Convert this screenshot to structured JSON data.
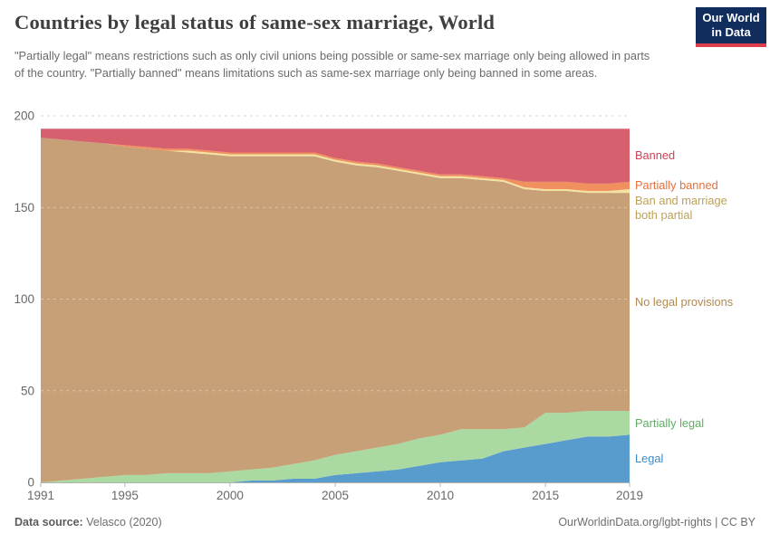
{
  "header": {
    "title": "Countries by legal status of same-sex marriage, World",
    "subtitle": "\"Partially legal\" means restrictions such as only civil unions being possible or same-sex marriage only being allowed in parts of the country. \"Partially banned\" means limitations such as same-sex marriage only being banned in some areas."
  },
  "logo": {
    "line1": "Our World",
    "line2": "in Data",
    "bg_color": "#102d5e",
    "accent_color": "#dc3e4e"
  },
  "footer": {
    "source_label": "Data source:",
    "source_value": "Velasco (2020)",
    "credit": "OurWorldinData.org/lgbt-rights | CC BY"
  },
  "chart_data": {
    "type": "area",
    "stacked": true,
    "title": "Countries by legal status of same-sex marriage, World",
    "xlabel": "",
    "ylabel": "",
    "ylim": [
      0,
      200
    ],
    "grid": true,
    "legend_position": "right-inline-labels",
    "total_countries": 193,
    "x": [
      1991,
      1992,
      1993,
      1994,
      1995,
      1996,
      1997,
      1998,
      1999,
      2000,
      2001,
      2002,
      2003,
      2004,
      2005,
      2006,
      2007,
      2008,
      2009,
      2010,
      2011,
      2012,
      2013,
      2014,
      2015,
      2016,
      2017,
      2018,
      2019
    ],
    "x_ticks": [
      1991,
      1995,
      2000,
      2005,
      2010,
      2015,
      2019
    ],
    "y_ticks": [
      0,
      50,
      100,
      150,
      200
    ],
    "series": [
      {
        "name": "Legal",
        "color": "#589bcd",
        "label_color": "#3d8cc7",
        "values": [
          0,
          0,
          0,
          0,
          0,
          0,
          0,
          0,
          0,
          0,
          1,
          1,
          2,
          2,
          4,
          5,
          6,
          7,
          9,
          11,
          12,
          13,
          17,
          19,
          21,
          23,
          25,
          25,
          26
        ]
      },
      {
        "name": "Partially legal",
        "color": "#aad9a1",
        "label_color": "#61ad66",
        "values": [
          0,
          1,
          2,
          3,
          4,
          4,
          5,
          5,
          5,
          6,
          6,
          7,
          8,
          10,
          11,
          12,
          13,
          14,
          15,
          15,
          17,
          16,
          12,
          11,
          17,
          15,
          14,
          14,
          13
        ]
      },
      {
        "name": "No legal provisions",
        "color": "#c7a077",
        "label_color": "#b0884e",
        "values": [
          188,
          186,
          184,
          182,
          179,
          178,
          176,
          175,
          174,
          172,
          171,
          170,
          168,
          166,
          160,
          156,
          153,
          149,
          144,
          140,
          137,
          136,
          135,
          130,
          121,
          121,
          119,
          119,
          119
        ]
      },
      {
        "name": "Ban and marriage both partial",
        "label": "Ban and marriage\nboth partial",
        "color": "#f3e1a0",
        "label_color": "#bda155",
        "values": [
          0,
          0,
          0,
          0,
          0,
          0,
          0,
          1,
          1,
          1,
          1,
          1,
          1,
          1,
          1,
          1,
          1,
          1,
          1,
          1,
          1,
          1,
          1,
          1,
          1,
          1,
          1,
          1,
          2
        ]
      },
      {
        "name": "Partially banned",
        "color": "#f0905f",
        "label_color": "#e4703f",
        "values": [
          0,
          0,
          0,
          0,
          1,
          1,
          1,
          1,
          1,
          1,
          1,
          1,
          1,
          1,
          1,
          1,
          1,
          1,
          1,
          1,
          1,
          1,
          1,
          3,
          4,
          4,
          4,
          4,
          4
        ]
      },
      {
        "name": "Banned",
        "color": "#d7606f",
        "label_color": "#c94257",
        "values": [
          5,
          6,
          7,
          8,
          9,
          10,
          11,
          11,
          12,
          13,
          13,
          13,
          13,
          13,
          16,
          18,
          19,
          21,
          23,
          25,
          25,
          26,
          27,
          29,
          29,
          29,
          30,
          30,
          29
        ]
      }
    ]
  }
}
